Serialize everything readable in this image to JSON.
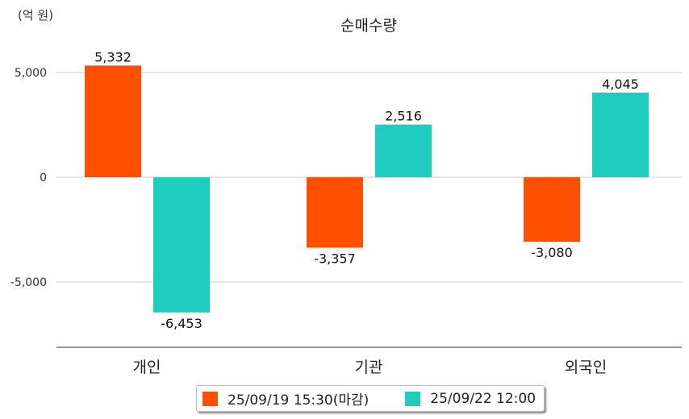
{
  "chart_data": {
    "type": "bar",
    "title": "순매수량",
    "ylabel": "(억 원)",
    "xlabel": "",
    "categories": [
      "개인",
      "기관",
      "외국인"
    ],
    "series": [
      {
        "name": "25/09/19 15:30(마감)",
        "color": "#ff5000",
        "values": [
          5332,
          -3357,
          -3080
        ],
        "labels": [
          "5,332",
          "-3,357",
          "-3,080"
        ]
      },
      {
        "name": "25/09/22 12:00",
        "color": "#1ecdbe",
        "values": [
          -6453,
          2516,
          4045
        ],
        "labels": [
          "-6,453",
          "2,516",
          "4,045"
        ]
      }
    ],
    "yticks": [
      5000,
      0,
      -5000
    ],
    "ytick_labels": [
      "5,000",
      "0",
      "-5,000"
    ],
    "ylim": [
      -8115,
      6200
    ],
    "grid": true,
    "legend": "bottom"
  }
}
